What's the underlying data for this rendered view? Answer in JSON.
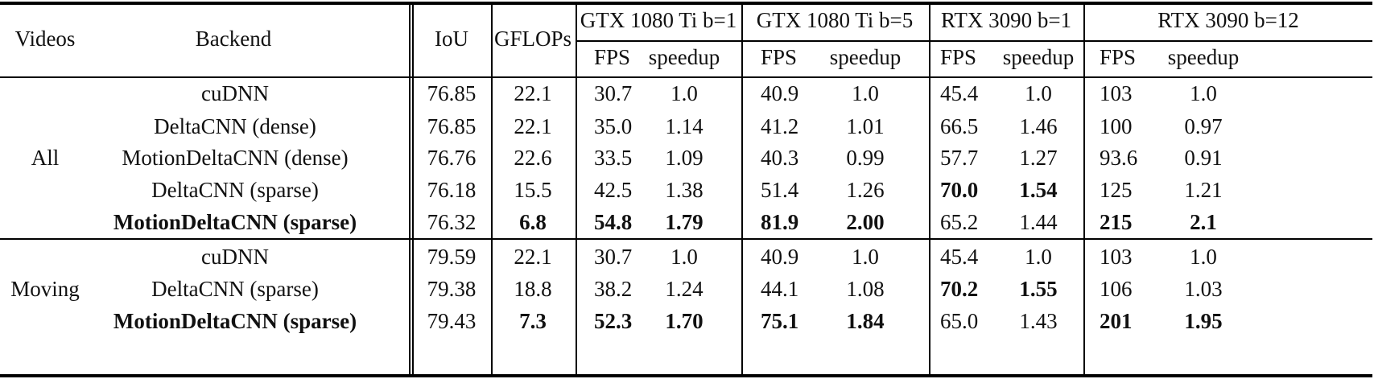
{
  "table": {
    "headers": {
      "videos": "Videos",
      "backend": "Backend",
      "iou": "IoU",
      "gflops": "GFLOPs",
      "groups": [
        "GTX 1080 Ti b=1",
        "GTX 1080 Ti b=5",
        "RTX 3090 b=1",
        "RTX 3090 b=12"
      ],
      "sub": [
        "FPS",
        "speedup",
        "FPS",
        "speedup",
        "FPS",
        "speedup",
        "FPS",
        "speedup"
      ]
    },
    "sections": [
      {
        "label": "All",
        "rows": [
          {
            "backend": "cuDNN",
            "bold_backend": false,
            "iou": "76.85",
            "gflops": "22.1",
            "gflops_bold": false,
            "vals": [
              "30.7",
              "1.0",
              "40.9",
              "1.0",
              "45.4",
              "1.0",
              "103",
              "1.0"
            ],
            "bold": [
              false,
              false,
              false,
              false,
              false,
              false,
              false,
              false
            ]
          },
          {
            "backend": "DeltaCNN (dense)",
            "bold_backend": false,
            "iou": "76.85",
            "gflops": "22.1",
            "gflops_bold": false,
            "vals": [
              "35.0",
              "1.14",
              "41.2",
              "1.01",
              "66.5",
              "1.46",
              "100",
              "0.97"
            ],
            "bold": [
              false,
              false,
              false,
              false,
              false,
              false,
              false,
              false
            ]
          },
          {
            "backend": "MotionDeltaCNN (dense)",
            "bold_backend": false,
            "iou": "76.76",
            "gflops": "22.6",
            "gflops_bold": false,
            "vals": [
              "33.5",
              "1.09",
              "40.3",
              "0.99",
              "57.7",
              "1.27",
              "93.6",
              "0.91"
            ],
            "bold": [
              false,
              false,
              false,
              false,
              false,
              false,
              false,
              false
            ]
          },
          {
            "backend": "DeltaCNN (sparse)",
            "bold_backend": false,
            "iou": "76.18",
            "gflops": "15.5",
            "gflops_bold": false,
            "vals": [
              "42.5",
              "1.38",
              "51.4",
              "1.26",
              "70.0",
              "1.54",
              "125",
              "1.21"
            ],
            "bold": [
              false,
              false,
              false,
              false,
              true,
              true,
              false,
              false
            ]
          },
          {
            "backend": "MotionDeltaCNN (sparse)",
            "bold_backend": true,
            "iou": "76.32",
            "gflops": "6.8",
            "gflops_bold": true,
            "vals": [
              "54.8",
              "1.79",
              "81.9",
              "2.00",
              "65.2",
              "1.44",
              "215",
              "2.1"
            ],
            "bold": [
              true,
              true,
              true,
              true,
              false,
              false,
              true,
              true
            ]
          }
        ]
      },
      {
        "label": "Moving",
        "rows": [
          {
            "backend": "cuDNN",
            "bold_backend": false,
            "iou": "79.59",
            "gflops": "22.1",
            "gflops_bold": false,
            "vals": [
              "30.7",
              "1.0",
              "40.9",
              "1.0",
              "45.4",
              "1.0",
              "103",
              "1.0"
            ],
            "bold": [
              false,
              false,
              false,
              false,
              false,
              false,
              false,
              false
            ]
          },
          {
            "backend": "DeltaCNN (sparse)",
            "bold_backend": false,
            "iou": "79.38",
            "gflops": "18.8",
            "gflops_bold": false,
            "vals": [
              "38.2",
              "1.24",
              "44.1",
              "1.08",
              "70.2",
              "1.55",
              "106",
              "1.03"
            ],
            "bold": [
              false,
              false,
              false,
              false,
              true,
              true,
              false,
              false
            ]
          },
          {
            "backend": "MotionDeltaCNN (sparse)",
            "bold_backend": true,
            "iou": "79.43",
            "gflops": "7.3",
            "gflops_bold": true,
            "vals": [
              "52.3",
              "1.70",
              "75.1",
              "1.84",
              "65.0",
              "1.43",
              "201",
              "1.95"
            ],
            "bold": [
              true,
              true,
              true,
              true,
              false,
              false,
              true,
              true
            ]
          }
        ]
      }
    ]
  }
}
